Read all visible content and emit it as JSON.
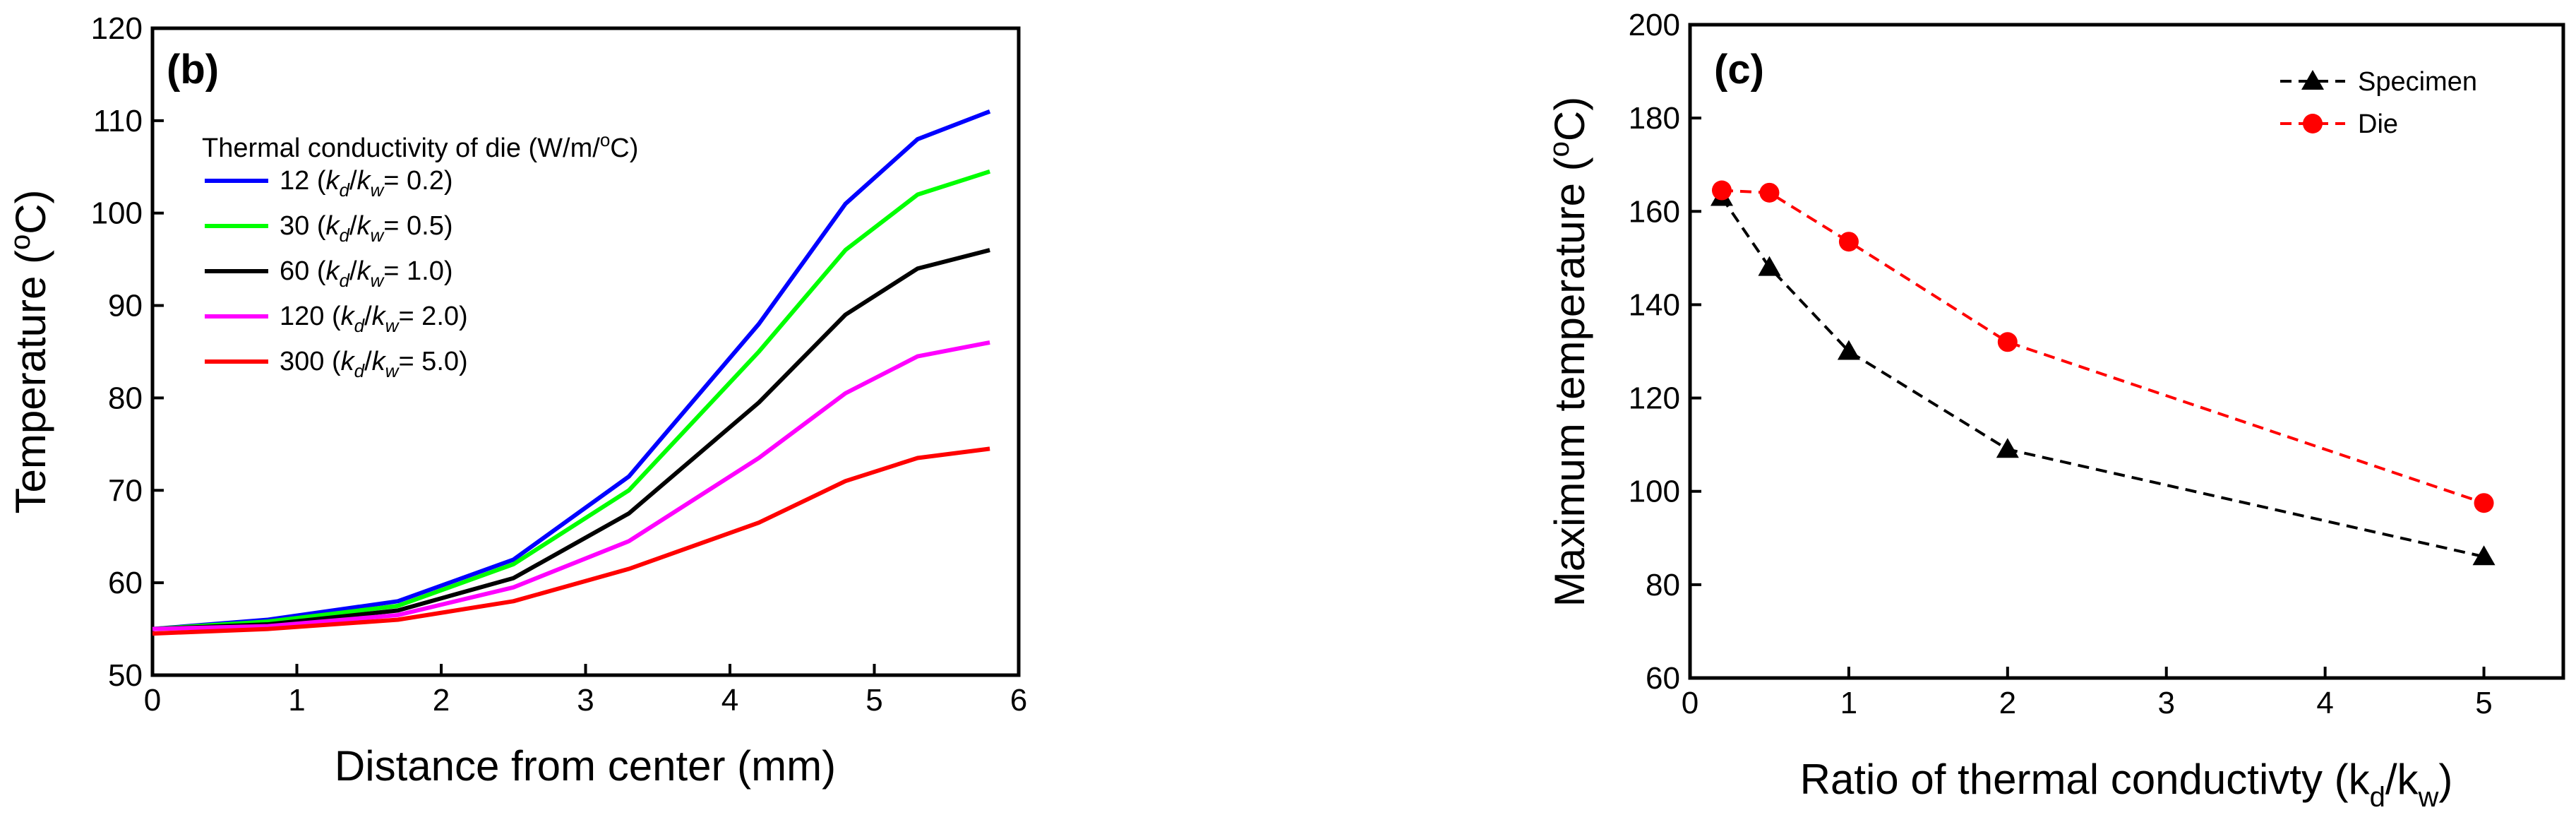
{
  "chart_data": [
    {
      "type": "line",
      "panel_label": "(b)",
      "xlabel": "Distance from center (mm)",
      "ylabel_main": "Temperature (",
      "ylabel_sup": "o",
      "ylabel_end": "C)",
      "xlim": [
        0,
        6
      ],
      "ylim": [
        50,
        120
      ],
      "xticks": [
        0,
        1,
        2,
        3,
        4,
        5,
        6
      ],
      "yticks": [
        50,
        60,
        70,
        80,
        90,
        100,
        110,
        120
      ],
      "legend_position": "top-left",
      "legend_title": {
        "main": "Thermal conductivity of die (W/m/",
        "sup": "o",
        "end": "C)"
      },
      "series": [
        {
          "name": "12",
          "ratio": "0.2",
          "color": "#0000ff",
          "x": [
            0,
            0.8,
            1.7,
            2.5,
            3.3,
            4.2,
            4.8,
            5.3,
            5.8
          ],
          "y": [
            55,
            56,
            58,
            62.5,
            71.5,
            88,
            101,
            108,
            111
          ]
        },
        {
          "name": "30",
          "ratio": "0.5",
          "color": "#00ff00",
          "x": [
            0,
            0.8,
            1.7,
            2.5,
            3.3,
            4.2,
            4.8,
            5.3,
            5.8
          ],
          "y": [
            55,
            55.8,
            57.5,
            62,
            70,
            85,
            96,
            102,
            104.5
          ]
        },
        {
          "name": "60",
          "ratio": "1.0",
          "color": "#000000",
          "x": [
            0,
            0.8,
            1.7,
            2.5,
            3.3,
            4.2,
            4.8,
            5.3,
            5.8
          ],
          "y": [
            55,
            55.5,
            57,
            60.5,
            67.5,
            79.5,
            89,
            94,
            96
          ]
        },
        {
          "name": "120",
          "ratio": "2.0",
          "color": "#ff00ff",
          "x": [
            0,
            0.8,
            1.7,
            2.5,
            3.3,
            4.2,
            4.8,
            5.3,
            5.8
          ],
          "y": [
            55,
            55.3,
            56.5,
            59.5,
            64.5,
            73.5,
            80.5,
            84.5,
            86
          ]
        },
        {
          "name": "300",
          "ratio": "5.0",
          "color": "#ff0000",
          "x": [
            0,
            0.8,
            1.7,
            2.5,
            3.3,
            4.2,
            4.8,
            5.3,
            5.8
          ],
          "y": [
            54.5,
            55,
            56,
            58,
            61.5,
            66.5,
            71,
            73.5,
            74.5
          ]
        }
      ]
    },
    {
      "type": "line",
      "panel_label": "(c)",
      "xlabel_main": "Ratio of thermal conductivty (k",
      "xlabel_sub1": "d",
      "xlabel_mid": "/k",
      "xlabel_sub2": "w",
      "xlabel_end": ")",
      "ylabel_main": "Maximum temperature (",
      "ylabel_sup": "o",
      "ylabel_end": "C)",
      "xlim": [
        0,
        5.5
      ],
      "ylim": [
        60,
        200
      ],
      "xticks": [
        0,
        1,
        2,
        3,
        4,
        5
      ],
      "yticks": [
        60,
        80,
        100,
        120,
        140,
        160,
        180,
        200
      ],
      "legend_position": "top-right",
      "series": [
        {
          "name": "Specimen",
          "color": "#000000",
          "marker": "triangle",
          "x": [
            0.2,
            0.5,
            1.0,
            2.0,
            5.0
          ],
          "y": [
            163,
            148,
            130,
            109,
            86
          ]
        },
        {
          "name": "Die",
          "color": "#ff0000",
          "marker": "circle",
          "x": [
            0.2,
            0.5,
            1.0,
            2.0,
            5.0
          ],
          "y": [
            164.5,
            164,
            153.5,
            132,
            97.5
          ]
        }
      ]
    }
  ]
}
